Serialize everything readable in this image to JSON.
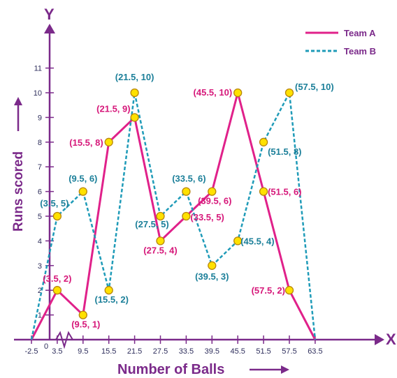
{
  "chart_data": {
    "type": "line",
    "xlabel": "Number of Balls",
    "ylabel": "Runs scored",
    "x_axis_letter": "X",
    "y_axis_letter": "Y",
    "origin_label": "0",
    "x_ticks": [
      "-2.5",
      "3.5",
      "9.5",
      "15.5",
      "21.5",
      "27.5",
      "33.5",
      "39.5",
      "45.5",
      "51.5",
      "57.5",
      "63.5"
    ],
    "y_ticks": [
      "1",
      "2",
      "3",
      "4",
      "5",
      "6",
      "7",
      "8",
      "9",
      "10",
      "11"
    ],
    "ylim": [
      0,
      11
    ],
    "legend_position": "top-right",
    "series": [
      {
        "name": "Team A",
        "color": "#e0218a",
        "style": "solid",
        "x": [
          -2.5,
          3.5,
          9.5,
          15.5,
          21.5,
          27.5,
          33.5,
          39.5,
          45.5,
          51.5,
          57.5,
          63.5
        ],
        "y": [
          0,
          2,
          1,
          8,
          9,
          4,
          5,
          6,
          10,
          6,
          2,
          0
        ],
        "labels": [
          "",
          "(3.5, 2)",
          "(9.5, 1)",
          "(15.5, 8)",
          "(21.5, 9)",
          "(27.5, 4)",
          "(33.5, 5)",
          "(39.5, 6)",
          "(45.5, 10)",
          "(51.5, 6)",
          "(57.5, 2)",
          ""
        ]
      },
      {
        "name": "Team B",
        "color": "#1f9bb8",
        "style": "dashed",
        "x": [
          -2.5,
          3.5,
          9.5,
          15.5,
          21.5,
          27.5,
          33.5,
          39.5,
          45.5,
          51.5,
          57.5,
          63.5
        ],
        "y": [
          0,
          5,
          6,
          2,
          10,
          5,
          6,
          3,
          4,
          8,
          10,
          0
        ],
        "labels": [
          "",
          "(3.5, 5)",
          "(9.5, 6)",
          "(15.5, 2)",
          "(21.5, 10)",
          "(27.5, 5)",
          "(33.5, 6)",
          "(39.5, 3)",
          "(45.5, 4)",
          "(51.5, 8)",
          "(57.5, 10)",
          ""
        ]
      }
    ],
    "colors": {
      "axis": "#7b2a8a",
      "marker_fill": "#ffe100",
      "marker_stroke": "#b8860b",
      "tick_text": "#2e2e5c"
    }
  }
}
